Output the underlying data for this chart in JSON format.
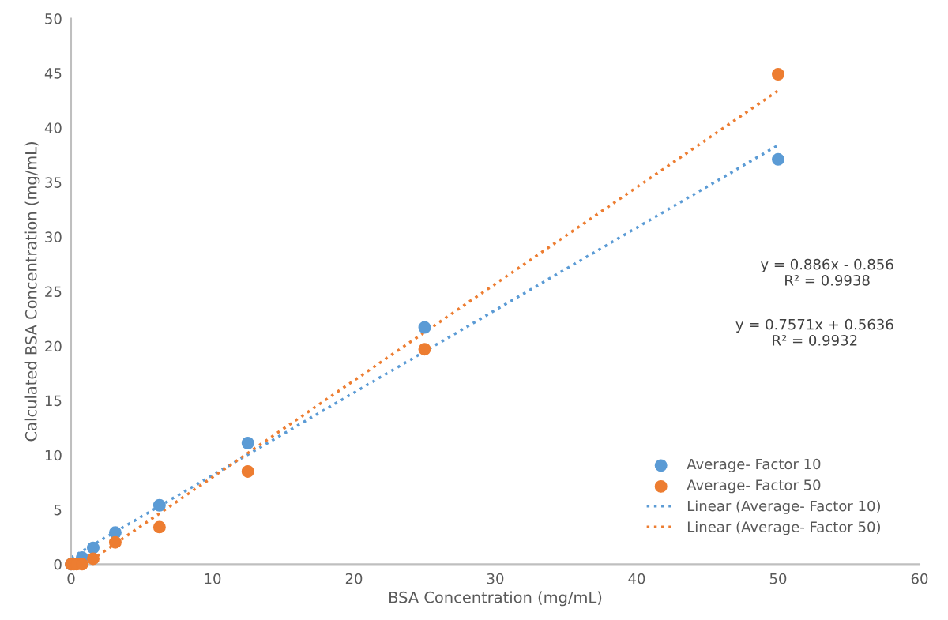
{
  "chart_data": {
    "type": "scatter",
    "xlabel": "BSA Concentration (mg/mL)",
    "ylabel": "Calculated BSA Concentration (mg/mL)",
    "xlim": [
      0,
      60
    ],
    "xticks": [
      0,
      10,
      20,
      30,
      40,
      50,
      60
    ],
    "ylim": [
      0,
      50
    ],
    "yticks": [
      0,
      5,
      10,
      15,
      20,
      25,
      30,
      35,
      40,
      45,
      50
    ],
    "grid": false,
    "legend": "bottom right",
    "series": [
      {
        "name": "Average- Factor 10",
        "marker": "circle",
        "color": "#5b9bd5",
        "x": [
          0,
          0.195,
          0.39,
          0.78,
          1.5625,
          3.125,
          6.25,
          12.5,
          25,
          50
        ],
        "values": [
          0,
          null,
          null,
          0.6,
          1.5,
          2.9,
          5.4,
          11.1,
          21.7,
          37.1
        ]
      },
      {
        "name": "Average- Factor 50",
        "marker": "circle",
        "color": "#ed7d31",
        "x": [
          0,
          0.195,
          0.39,
          0.78,
          1.5625,
          3.125,
          6.25,
          12.5,
          25,
          50
        ],
        "values": [
          0,
          0,
          0,
          0,
          0.5,
          2.0,
          3.4,
          8.5,
          19.7,
          44.9
        ]
      },
      {
        "name": "Linear (Average- Factor 10)",
        "type": "line",
        "line_style": "dotted",
        "color": "#5b9bd5",
        "x": [
          0,
          50
        ],
        "values": [
          0.6,
          38.4
        ]
      },
      {
        "name": "Linear (Average- Factor 50)",
        "type": "line",
        "line_style": "dotted",
        "color": "#ed7d31",
        "x": [
          1.0,
          50
        ],
        "values": [
          0,
          43.4
        ]
      }
    ],
    "annotations": [
      "y = 0.886x - 0.856\nR² = 0.9938",
      "y = 0.7571x + 0.5636\nR² = 0.9932"
    ]
  }
}
